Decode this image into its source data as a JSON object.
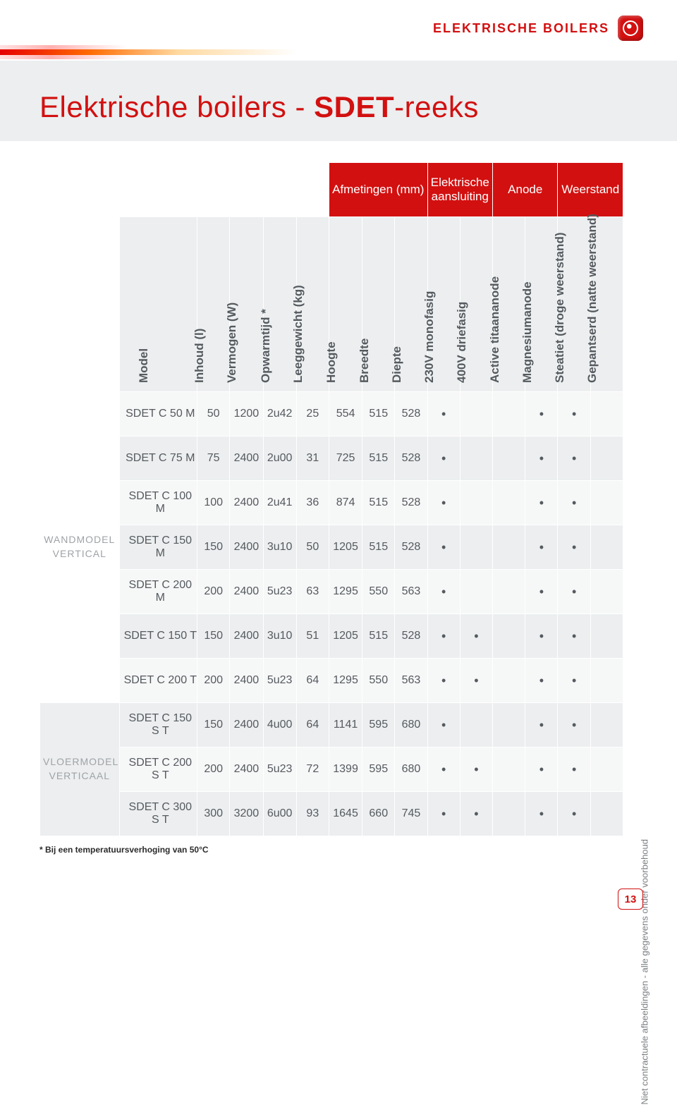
{
  "header": {
    "badge_text": "ELEKTRISCHE BOILERS",
    "icon_name": "water-drop"
  },
  "title": {
    "prefix": "Elektrische boilers - ",
    "bold": "SDET",
    "suffix": "-reeks"
  },
  "table": {
    "group_headers": [
      {
        "label": "Afmetingen (mm)",
        "span": 3
      },
      {
        "label": "Elektrische aansluiting",
        "span": 2
      },
      {
        "label": "Anode",
        "span": 2
      },
      {
        "label": "Weerstand",
        "span": 2
      }
    ],
    "columns": [
      "Model",
      "Inhoud (l)",
      "Vermogen (W)",
      "Opwarmtijd *",
      "Leeggewicht (kg)",
      "Hoogte",
      "Breedte",
      "Diepte",
      "230V monofasig",
      "400V driefasig",
      "Active titaananode",
      "Magnesiumanode",
      "Steatiet (droge weerstand)",
      "Gepantserd (natte weerstand)"
    ],
    "categories": [
      {
        "label": "WANDMODEL VERTICAL",
        "row_start": 0,
        "row_span": 7
      },
      {
        "label": "VLOERMODEL VERTICAAL",
        "row_start": 7,
        "row_span": 3
      }
    ],
    "rows": [
      {
        "model": "SDET C 50 M",
        "v": [
          "50",
          "1200",
          "2u42",
          "25",
          "554",
          "515",
          "528",
          "•",
          "",
          "",
          "•",
          "•",
          ""
        ]
      },
      {
        "model": "SDET C 75 M",
        "v": [
          "75",
          "2400",
          "2u00",
          "31",
          "725",
          "515",
          "528",
          "•",
          "",
          "",
          "•",
          "•",
          ""
        ]
      },
      {
        "model": "SDET C 100 M",
        "v": [
          "100",
          "2400",
          "2u41",
          "36",
          "874",
          "515",
          "528",
          "•",
          "",
          "",
          "•",
          "•",
          ""
        ]
      },
      {
        "model": "SDET C 150 M",
        "v": [
          "150",
          "2400",
          "3u10",
          "50",
          "1205",
          "515",
          "528",
          "•",
          "",
          "",
          "•",
          "•",
          ""
        ]
      },
      {
        "model": "SDET C 200 M",
        "v": [
          "200",
          "2400",
          "5u23",
          "63",
          "1295",
          "550",
          "563",
          "•",
          "",
          "",
          "•",
          "•",
          ""
        ]
      },
      {
        "model": "SDET C 150 T",
        "v": [
          "150",
          "2400",
          "3u10",
          "51",
          "1205",
          "515",
          "528",
          "•",
          "•",
          "",
          "•",
          "•",
          ""
        ]
      },
      {
        "model": "SDET C 200 T",
        "v": [
          "200",
          "2400",
          "5u23",
          "64",
          "1295",
          "550",
          "563",
          "•",
          "•",
          "",
          "•",
          "•",
          ""
        ]
      },
      {
        "model": "SDET C 150 S T",
        "v": [
          "150",
          "2400",
          "4u00",
          "64",
          "1141",
          "595",
          "680",
          "•",
          "",
          "",
          "•",
          "•",
          ""
        ]
      },
      {
        "model": "SDET C 200 S T",
        "v": [
          "200",
          "2400",
          "5u23",
          "72",
          "1399",
          "595",
          "680",
          "•",
          "•",
          "",
          "•",
          "•",
          ""
        ]
      },
      {
        "model": "SDET C 300 S T",
        "v": [
          "300",
          "3200",
          "6u00",
          "93",
          "1645",
          "660",
          "745",
          "•",
          "•",
          "",
          "•",
          "•",
          ""
        ]
      }
    ],
    "footnote": "* Bij een temperatuursverhoging van 50°C"
  },
  "side_note": "Niet contractuele afbeeldingen - alle gegevens onder voorbehoud",
  "page_number": "13",
  "colors": {
    "accent": "#d21010",
    "text_muted": "#555a5f",
    "row_bg": "#f6f7f7",
    "row_alt": "#eceeef"
  }
}
